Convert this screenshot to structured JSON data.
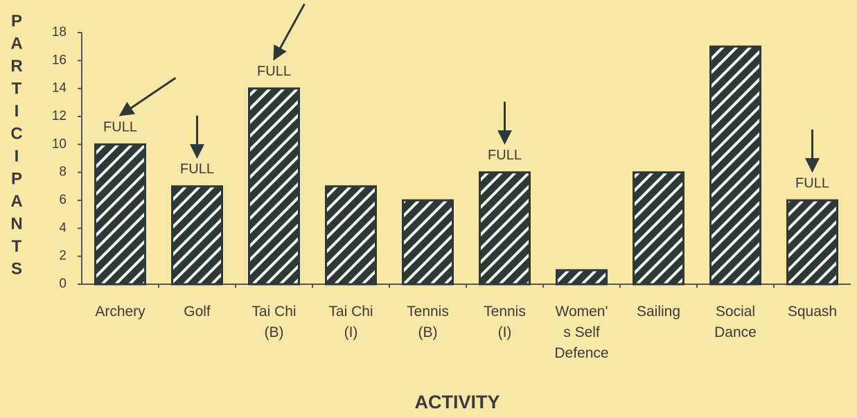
{
  "chart_data": {
    "type": "bar",
    "x_label": "ACTIVITY",
    "y_label": "PARTICIPANTS",
    "categories": [
      "Archery",
      "Golf",
      "Tai Chi\n(B)",
      "Tai Chi\n(I)",
      "Tennis\n(B)",
      "Tennis\n(I)",
      "Women'\ns Self\nDefence",
      "Sailing",
      "Social\nDance",
      "Squash"
    ],
    "values": [
      10,
      7,
      14,
      7,
      6,
      8,
      1,
      8,
      17,
      6
    ],
    "color": "#2f3838",
    "ylim": [
      0,
      18
    ],
    "yticks": [
      0,
      2,
      4,
      6,
      8,
      10,
      12,
      14,
      16,
      18
    ],
    "grid": false,
    "annotations": [
      {
        "label": "FULL",
        "category": "Archery"
      },
      {
        "label": "FULL",
        "category": "Golf"
      },
      {
        "label": "FULL",
        "category": "Tai Chi\n(B)"
      },
      {
        "label": "FULL",
        "category": "Tennis\n(I)"
      },
      {
        "label": "FULL",
        "category": "Squash"
      }
    ]
  }
}
